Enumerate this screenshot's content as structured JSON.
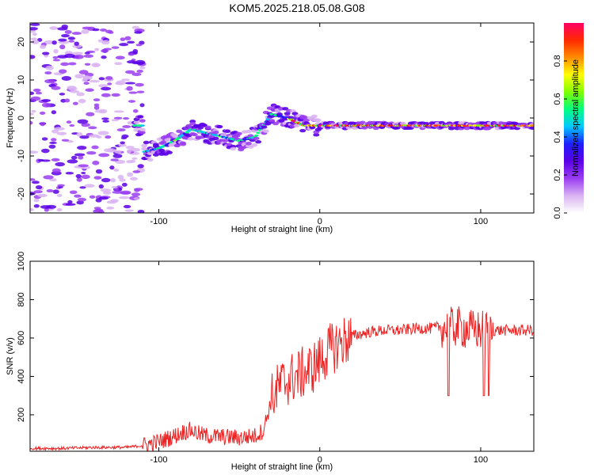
{
  "title": "KOM5.2025.218.05.08.G08",
  "chart_data": [
    {
      "type": "heatmap",
      "title": "KOM5.2025.218.05.08.G08",
      "xlabel": "Height of straight line (km)",
      "ylabel": "Frequency (Hz)",
      "xlim": [
        -180,
        133
      ],
      "ylim": [
        -25,
        25
      ],
      "xticks": [
        -100,
        0,
        100
      ],
      "yticks": [
        -20,
        -10,
        0,
        10,
        20
      ],
      "colorbar": {
        "label": "Normalized spectral amplitude",
        "range": [
          0,
          1
        ],
        "ticks": [
          "0.0",
          "0.2",
          "0.4",
          "0.6",
          "0.8"
        ],
        "colors": [
          "#ffffff",
          "#d9b3f2",
          "#9a3df2",
          "#5a00e6",
          "#1e1eff",
          "#00c8ff",
          "#00ff7f",
          "#7fff00",
          "#ffff00",
          "#ff8c00",
          "#ff2a00",
          "#ff0064"
        ]
      },
      "ridge": {
        "x": [
          -110,
          -100,
          -90,
          -80,
          -70,
          -60,
          -50,
          -40,
          -30,
          -20,
          -10,
          0,
          10,
          20,
          30,
          40,
          50,
          60,
          70,
          80,
          90,
          100,
          110,
          120,
          133
        ],
        "freq": [
          -9,
          -8,
          -6,
          -3,
          -4,
          -5,
          -6,
          -5,
          1,
          0,
          -2,
          -2,
          -2,
          -2,
          -2,
          -2,
          -2,
          -2,
          -2,
          -2,
          -2,
          -2,
          -2,
          -2,
          -2
        ]
      }
    },
    {
      "type": "line",
      "xlabel": "Height of straight line (km)",
      "ylabel": "SNR (v/v)",
      "xlim": [
        -180,
        133
      ],
      "ylim": [
        10,
        1000
      ],
      "xticks": [
        -100,
        0,
        100
      ],
      "yticks": [
        200,
        400,
        600,
        800,
        1000
      ],
      "color": "#ee2222",
      "series": [
        {
          "name": "SNR",
          "x": [
            -180,
            -160,
            -140,
            -120,
            -110,
            -100,
            -90,
            -85,
            -80,
            -75,
            -70,
            -60,
            -50,
            -40,
            -35,
            -30,
            -25,
            -20,
            -15,
            -10,
            -5,
            0,
            5,
            10,
            20,
            30,
            40,
            50,
            60,
            70,
            75,
            80,
            85,
            90,
            95,
            100,
            105,
            110,
            120,
            133
          ],
          "y": [
            25,
            25,
            30,
            30,
            40,
            60,
            90,
            110,
            120,
            100,
            90,
            85,
            80,
            90,
            120,
            280,
            350,
            380,
            400,
            420,
            440,
            480,
            530,
            560,
            610,
            630,
            640,
            640,
            650,
            650,
            660,
            650,
            660,
            650,
            640,
            640,
            640,
            640,
            640,
            640
          ]
        }
      ]
    }
  ]
}
